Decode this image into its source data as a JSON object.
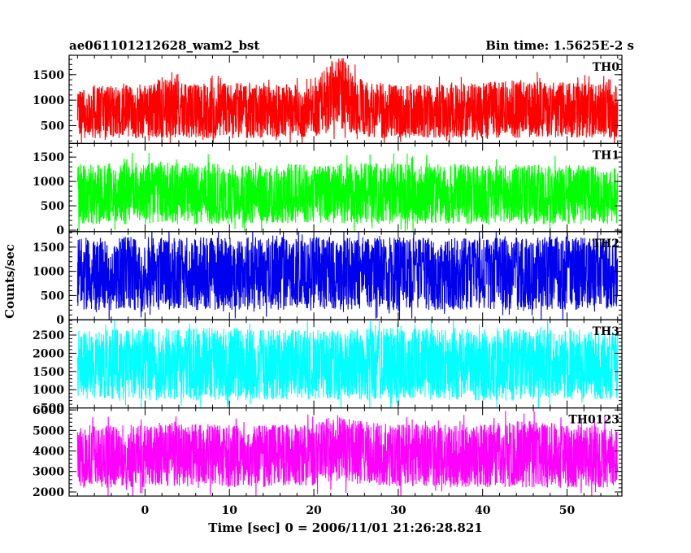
{
  "header": {
    "left_title": "ae061101212628_wam2_bst",
    "right_title": "Bin time: 1.5625E-2 s"
  },
  "chart_data": {
    "type": "line",
    "xlabel": "Time [sec] 0 = 2006/11/01 21:26:28.821",
    "ylabel": "Counts/sec",
    "xlim": [
      -9,
      56.5
    ],
    "x_data_range": [
      -8,
      56
    ],
    "x_ticks": [
      0,
      10,
      20,
      30,
      40,
      50
    ],
    "grid": false,
    "panels": [
      {
        "name": "TH0",
        "color": "#ff0000",
        "ylim": [
          150,
          1880
        ],
        "y_ticks": [
          500,
          1000,
          1500
        ],
        "envelope": {
          "x": [
            -8,
            0,
            2,
            5,
            10,
            15,
            20,
            21.5,
            22.5,
            23.5,
            24.5,
            26,
            30,
            35,
            40,
            45,
            50,
            56
          ],
          "upper": [
            1300,
            1320,
            1450,
            1350,
            1350,
            1300,
            1330,
            1700,
            1850,
            1850,
            1600,
            1350,
            1330,
            1300,
            1350,
            1400,
            1350,
            1300
          ],
          "lower": [
            250,
            250,
            260,
            250,
            250,
            260,
            280,
            350,
            420,
            420,
            350,
            280,
            260,
            260,
            250,
            260,
            260,
            250
          ]
        }
      },
      {
        "name": "TH1",
        "color": "#00ff00",
        "ylim": [
          -30,
          1780
        ],
        "y_ticks": [
          0,
          500,
          1000,
          1500
        ],
        "envelope": {
          "x": [
            -8,
            0,
            10,
            20,
            30,
            40,
            50,
            56
          ],
          "upper": [
            1350,
            1400,
            1350,
            1350,
            1400,
            1350,
            1350,
            1300
          ],
          "lower": [
            120,
            120,
            120,
            140,
            120,
            120,
            120,
            120
          ]
        }
      },
      {
        "name": "TH2",
        "color": "#0000ee",
        "ylim": [
          0,
          1820
        ],
        "y_ticks": [
          0,
          500,
          1000,
          1500
        ],
        "envelope": {
          "x": [
            -8,
            0,
            10,
            20,
            30,
            40,
            50,
            56
          ],
          "upper": [
            1700,
            1720,
            1700,
            1720,
            1700,
            1700,
            1720,
            1700
          ],
          "lower": [
            200,
            200,
            200,
            200,
            200,
            200,
            200,
            200
          ]
        }
      },
      {
        "name": "TH3",
        "color": "#00ffff",
        "ylim": [
          500,
          2920
        ],
        "y_ticks": [
          500,
          1000,
          1500,
          2000,
          2500
        ],
        "envelope": {
          "x": [
            -8,
            0,
            10,
            20,
            30,
            40,
            50,
            56
          ],
          "upper": [
            2650,
            2700,
            2700,
            2650,
            2700,
            2700,
            2650,
            2650
          ],
          "lower": [
            700,
            700,
            700,
            720,
            700,
            700,
            700,
            700
          ]
        }
      },
      {
        "name": "TH0123",
        "color": "#ff00ff",
        "ylim": [
          1800,
          6100
        ],
        "y_ticks": [
          2000,
          3000,
          4000,
          5000,
          6000
        ],
        "envelope": {
          "x": [
            -8,
            0,
            2,
            10,
            20,
            22.5,
            25,
            30,
            40,
            45,
            50,
            56
          ],
          "upper": [
            5200,
            5300,
            5400,
            5300,
            5300,
            5800,
            5500,
            5300,
            5300,
            5500,
            5300,
            5200
          ],
          "lower": [
            2200,
            2200,
            2300,
            2200,
            2300,
            2600,
            2400,
            2250,
            2200,
            2200,
            2200,
            2200
          ]
        }
      }
    ]
  }
}
